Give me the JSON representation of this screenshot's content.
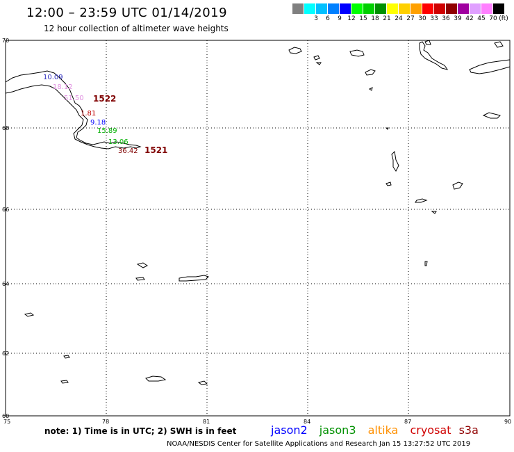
{
  "header": {
    "title": "12:00 – 23:59 UTC 01/14/2019",
    "subtitle": "12 hour collection of altimeter wave heights"
  },
  "color_scale": {
    "unit_label": "(ft)",
    "swatches": [
      {
        "color": "#808080",
        "label": ""
      },
      {
        "color": "#00ffff",
        "label": "3"
      },
      {
        "color": "#00c0ff",
        "label": "6"
      },
      {
        "color": "#0080ff",
        "label": "9"
      },
      {
        "color": "#0000ff",
        "label": "12"
      },
      {
        "color": "#00ff00",
        "label": "15"
      },
      {
        "color": "#00d000",
        "label": "18"
      },
      {
        "color": "#009000",
        "label": "21"
      },
      {
        "color": "#ffff00",
        "label": "24"
      },
      {
        "color": "#ffd000",
        "label": "27"
      },
      {
        "color": "#ffa000",
        "label": "30"
      },
      {
        "color": "#ff0000",
        "label": "33"
      },
      {
        "color": "#d00000",
        "label": "36"
      },
      {
        "color": "#900000",
        "label": "39"
      },
      {
        "color": "#a000a0",
        "label": "42"
      },
      {
        "color": "#e0a0ff",
        "label": "45"
      },
      {
        "color": "#ff80ff",
        "label": "70"
      },
      {
        "color": "#000000",
        "label": ""
      }
    ]
  },
  "axes": {
    "lon_ticks": [
      "75",
      "78",
      "81",
      "84",
      "87",
      "90"
    ],
    "lat_ticks": [
      "70",
      "68",
      "66",
      "64",
      "62",
      "60"
    ]
  },
  "observations": [
    {
      "text": "10.09",
      "color": "#3030c0"
    },
    {
      "text": "18.12",
      "color": "#e090e0"
    },
    {
      "text": "51.50",
      "color": "#e090e0"
    },
    {
      "text": "1522",
      "color": "#800000"
    },
    {
      "text": "1.81",
      "color": "#c00000"
    },
    {
      "text": "9.18",
      "color": "#0000ff"
    },
    {
      "text": "15.89",
      "color": "#00b000"
    },
    {
      "text": "13.06",
      "color": "#00b000"
    },
    {
      "text": "36.42",
      "color": "#800000"
    },
    {
      "text": "1521",
      "color": "#800000"
    }
  ],
  "footer": {
    "note": "note:  1) Time is in UTC;  2) SWH is in feet",
    "satellites": [
      {
        "name": "jason2",
        "color": "#0000ff"
      },
      {
        "name": "jason3",
        "color": "#009000"
      },
      {
        "name": "altika",
        "color": "#ff9000"
      },
      {
        "name": "cryosat",
        "color": "#d00000"
      },
      {
        "name": "s3a",
        "color": "#900000"
      }
    ],
    "credit": "NOAA/NESDIS Center for Satellite Applications and Research    Jan 15 13:27:52 UTC 2019"
  }
}
